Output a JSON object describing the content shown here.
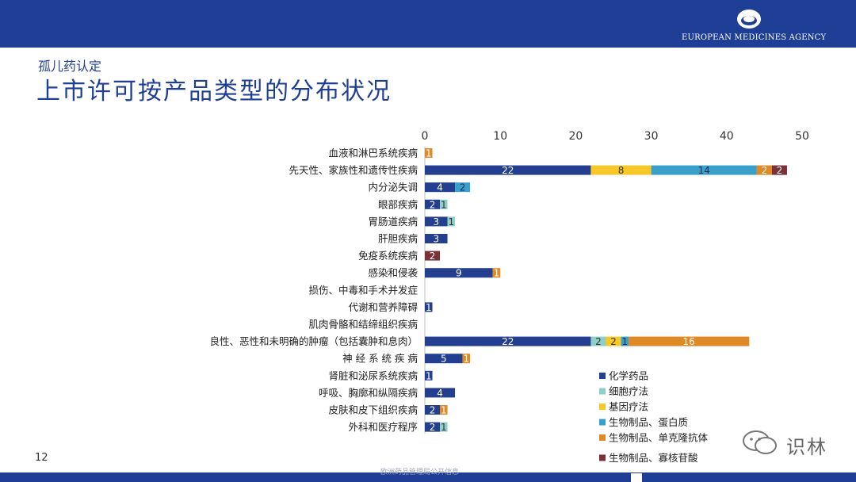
{
  "header": {
    "agency_name": "EUROPEAN MEDICINES AGENCY",
    "subtitle": "孤儿药认定",
    "title": "上市许可按产品类型的分布状况"
  },
  "footer": {
    "page_number": "12",
    "note": "欧洲药品管理局公开信息",
    "watermark": "识林"
  },
  "colors": {
    "brand_blue": "#1f3f96",
    "chemical": "#243f8f",
    "cell_therapy": "#8fcfc8",
    "gene_therapy": "#f6c927",
    "protein": "#38a0c9",
    "monoclonal": "#e08a25",
    "oligonucleotide": "#7a3138"
  },
  "chart_data": {
    "type": "bar",
    "orientation": "horizontal",
    "stacked": true,
    "xlim": [
      0,
      50
    ],
    "x_ticks": [
      0,
      10,
      20,
      30,
      40,
      50
    ],
    "axis_position": "top",
    "grid": false,
    "legend_position": "bottom-right",
    "categories": [
      "血液和淋巴系统疾病",
      "先天性、家族性和遗传性疾病",
      "内分泌失调",
      "眼部疾病",
      "胃肠道疾病",
      "肝胆疾病",
      "免疫系统疾病",
      "感染和侵袭",
      "损伤、中毒和手术并发症",
      "代谢和营养障碍",
      "肌肉骨骼和结缔组织疾病",
      "良性、恶性和未明确的肿瘤（包括囊肿和息肉）",
      "神 经 系 统 疾 病",
      "肾脏和泌尿系统疾病",
      "呼吸、胸廓和纵隔疾病",
      "皮肤和皮下组织疾病",
      "外科和医疗程序"
    ],
    "series": [
      {
        "name": "化学药品",
        "color": "#243f8f",
        "values": [
          0,
          22,
          4,
          2,
          3,
          3,
          0,
          9,
          0,
          1,
          0,
          22,
          5,
          1,
          4,
          2,
          2
        ]
      },
      {
        "name": "细胞疗法",
        "color": "#8fcfc8",
        "values": [
          0,
          0,
          0,
          1,
          1,
          0,
          0,
          0,
          0,
          0,
          0,
          2,
          0,
          0,
          0,
          0,
          1
        ]
      },
      {
        "name": "基因疗法",
        "color": "#f6c927",
        "values": [
          0,
          8,
          0,
          0,
          0,
          0,
          0,
          0,
          0,
          0,
          0,
          2,
          0,
          0,
          0,
          0,
          0
        ]
      },
      {
        "name": "生物制品、蛋白质",
        "color": "#38a0c9",
        "values": [
          0,
          14,
          2,
          0,
          0,
          0,
          0,
          0,
          0,
          0,
          0,
          1,
          0,
          0,
          0,
          0,
          0
        ]
      },
      {
        "name": "生物制品、单克隆抗体",
        "color": "#e08a25",
        "values": [
          1,
          2,
          0,
          0,
          0,
          0,
          0,
          1,
          0,
          0,
          0,
          16,
          1,
          0,
          0,
          1,
          0
        ]
      },
      {
        "name": "生物制品、寡核苷酸",
        "color": "#7a3138",
        "values": [
          0,
          2,
          0,
          0,
          0,
          0,
          2,
          0,
          0,
          0,
          0,
          0,
          0,
          0,
          0,
          0,
          0
        ]
      }
    ]
  }
}
